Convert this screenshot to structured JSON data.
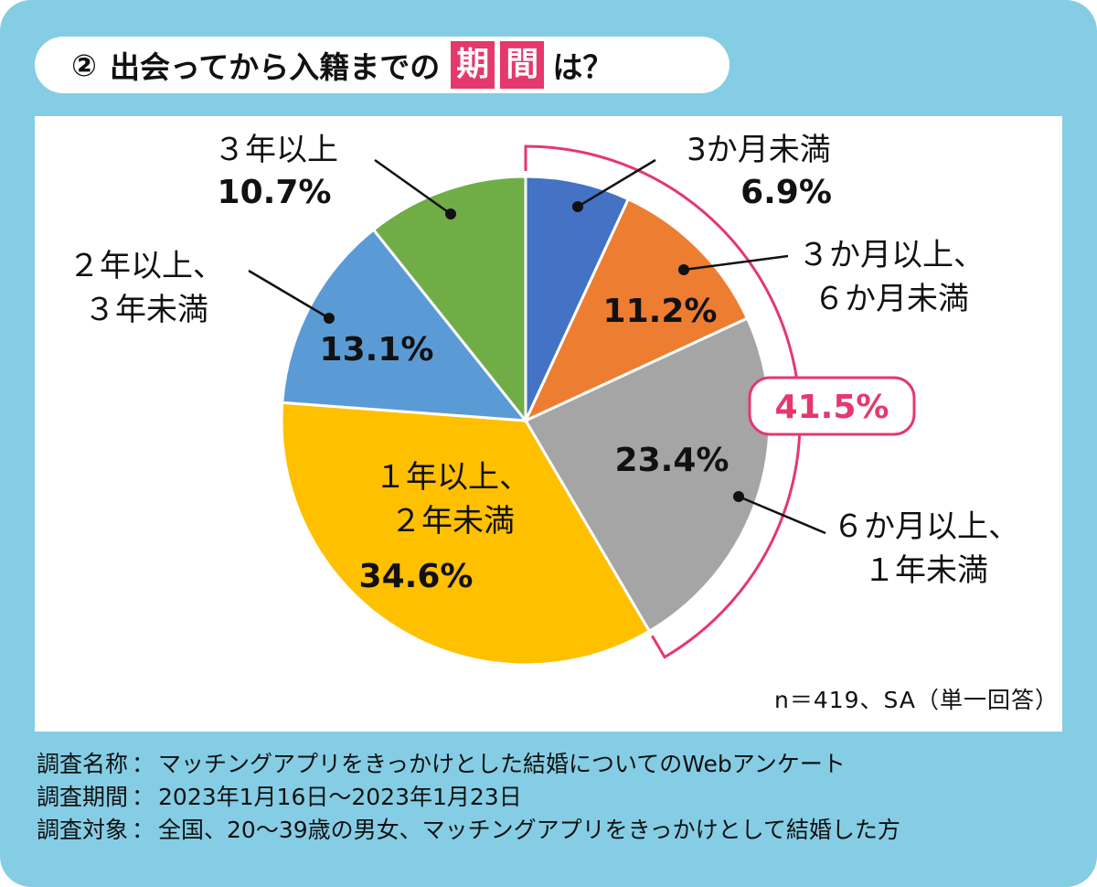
{
  "title": {
    "number": "②",
    "prefix": "出会ってから入籍までの",
    "highlight1": "期",
    "highlight2": "間",
    "suffix": "は？"
  },
  "colors": {
    "frame": "#85cde4",
    "accent": "#e4386e",
    "slices": [
      "#4472c4",
      "#ed7d31",
      "#a5a5a5",
      "#ffc000",
      "#5b9bd5",
      "#70ad47"
    ]
  },
  "chart_data": {
    "type": "pie",
    "slices": [
      {
        "label_lines": [
          "3か月未満"
        ],
        "value": 6.9,
        "value_label": "6.9%"
      },
      {
        "label_lines": [
          "３か月以上、",
          "６か月未満"
        ],
        "value": 11.2,
        "value_label": "11.2%"
      },
      {
        "label_lines": [
          "６か月以上、",
          "１年未満"
        ],
        "value": 23.4,
        "value_label": "23.4%"
      },
      {
        "label_lines": [
          "１年以上、",
          "２年未満"
        ],
        "value": 34.6,
        "value_label": "34.6%"
      },
      {
        "label_lines": [
          "２年以上、",
          "３年未満"
        ],
        "value": 13.1,
        "value_label": "13.1%"
      },
      {
        "label_lines": [
          "３年以上"
        ],
        "value": 10.7,
        "value_label": "10.7%"
      }
    ],
    "bracket": {
      "value_label": "41.5%",
      "covers": [
        "3か月未満",
        "３か月以上、６か月未満",
        "６か月以上、１年未満"
      ]
    }
  },
  "sample_note": "n＝419、SA（単一回答）",
  "footer": [
    {
      "key": "調査名称",
      "value": "マッチングアプリをきっかけとした結婚についてのWebアンケート"
    },
    {
      "key": "調査期間",
      "value": "2023年1月16日〜2023年1月23日"
    },
    {
      "key": "調査対象",
      "value": "全国、20〜39歳の男女、マッチングアプリをきっかけとして結婚した方"
    }
  ]
}
